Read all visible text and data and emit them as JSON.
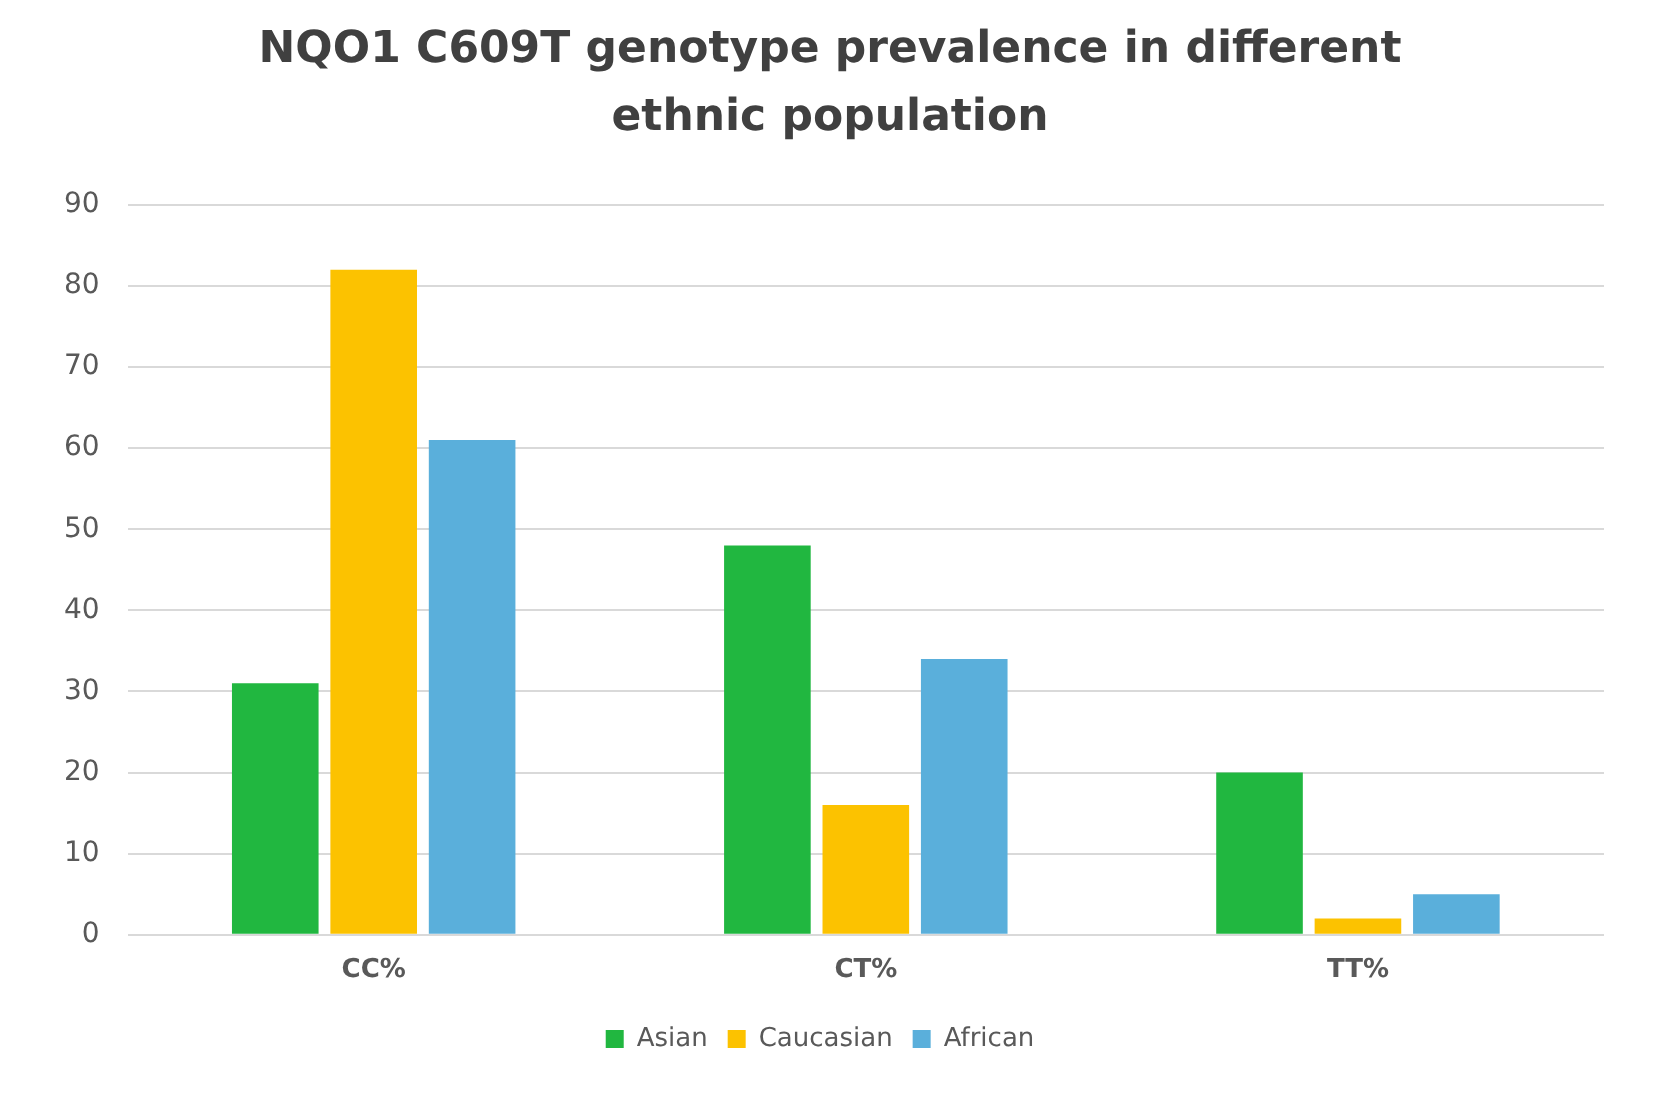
{
  "chart_data": {
    "type": "bar",
    "title": "NQO1 C609T genotype prevalence in different ethnic population",
    "categories": [
      "CC%",
      "CT%",
      "TT%"
    ],
    "series": [
      {
        "name": "Asian",
        "color": "#21b740",
        "values": [
          31,
          48,
          20
        ]
      },
      {
        "name": "Caucasian",
        "color": "#fcc200",
        "values": [
          82,
          16,
          2
        ]
      },
      {
        "name": "African",
        "color": "#5aafdb",
        "values": [
          61,
          34,
          5
        ]
      }
    ],
    "ylim": [
      0,
      90
    ],
    "yticks": [
      0,
      10,
      20,
      30,
      40,
      50,
      60,
      70,
      80,
      90
    ],
    "grid": "y",
    "legend": "bottom"
  }
}
